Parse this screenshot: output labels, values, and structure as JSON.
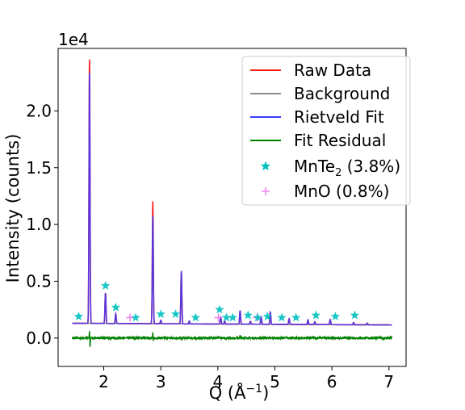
{
  "chart_data": {
    "type": "line",
    "xlabel": "Q (Å",
    "xlabel_sup": "−1",
    "xlabel_suffix": ")",
    "ylabel": "Intensity (counts)",
    "y_multiplier": "1e4",
    "xlim": [
      1.2,
      7.3
    ],
    "ylim": [
      -2500,
      25500
    ],
    "x_ticks": [
      2,
      3,
      4,
      5,
      6,
      7
    ],
    "y_ticks": [
      0,
      5000,
      10000,
      15000,
      20000
    ],
    "y_tick_labels": [
      "0.0",
      "0.5",
      "1.0",
      "1.5",
      "2.0"
    ],
    "grid": false,
    "legend_position": "top-right",
    "series": [
      {
        "name": "Raw Data",
        "color": "#ff1a1a",
        "style": "line"
      },
      {
        "name": "Background",
        "color": "#8c8c8c",
        "style": "line"
      },
      {
        "name": "Rietveld Fit",
        "color": "#3b3bff",
        "style": "line"
      },
      {
        "name": "Fit Residual",
        "color": "#008000",
        "style": "line"
      },
      {
        "name": "MnTe",
        "name_sub": "2",
        "name_suffix": " (3.8%)",
        "color": "#00c0c0",
        "style": "star"
      },
      {
        "name": "MnO (0.8%)",
        "color": "#ee82ee",
        "style": "plus"
      }
    ],
    "profile": {
      "x_range": [
        1.45,
        7.05
      ],
      "background": {
        "start": 1300,
        "end": 1150
      },
      "peaks": [
        {
          "q": 1.75,
          "height": 22200
        },
        {
          "q": 2.03,
          "height": 2700
        },
        {
          "q": 2.21,
          "height": 850
        },
        {
          "q": 2.86,
          "height": 9500
        },
        {
          "q": 3.0,
          "height": 300
        },
        {
          "q": 3.36,
          "height": 4700
        },
        {
          "q": 3.5,
          "height": 250
        },
        {
          "q": 4.05,
          "height": 600
        },
        {
          "q": 4.12,
          "height": 250
        },
        {
          "q": 4.39,
          "height": 1200
        },
        {
          "q": 4.57,
          "height": 250
        },
        {
          "q": 4.76,
          "height": 650
        },
        {
          "q": 4.92,
          "height": 1100
        },
        {
          "q": 5.25,
          "height": 500
        },
        {
          "q": 5.58,
          "height": 400
        },
        {
          "q": 5.7,
          "height": 250
        },
        {
          "q": 5.97,
          "height": 450
        },
        {
          "q": 6.38,
          "height": 200
        },
        {
          "q": 6.62,
          "height": 150
        }
      ],
      "raw_deviations": [
        {
          "q": 1.75,
          "delta": 1200
        },
        {
          "q": 2.86,
          "delta": 1300
        },
        {
          "q": 3.36,
          "delta": -150
        }
      ],
      "residual_spikes": [
        {
          "q": 1.75,
          "value": 700
        },
        {
          "q": 1.76,
          "value": -800
        },
        {
          "q": 2.86,
          "value": 450
        },
        {
          "q": 2.87,
          "value": -300
        },
        {
          "q": 3.36,
          "value": -200
        },
        {
          "q": 4.39,
          "value": 200
        }
      ]
    },
    "mnte2_markers": {
      "x": [
        1.56,
        2.03,
        2.21,
        2.56,
        3.0,
        3.26,
        3.61,
        4.03,
        4.15,
        4.26,
        4.53,
        4.7,
        4.87,
        5.12,
        5.37,
        5.72,
        6.06,
        6.4
      ],
      "y": [
        1900,
        4600,
        2700,
        1800,
        2100,
        2100,
        1800,
        2500,
        1800,
        1800,
        2000,
        1800,
        1900,
        1800,
        1800,
        2000,
        1900,
        2000
      ]
    },
    "mno_markers": {
      "x": [
        2.46,
        4.01,
        4.69
      ],
      "y": [
        1800,
        1800,
        1800
      ]
    }
  }
}
